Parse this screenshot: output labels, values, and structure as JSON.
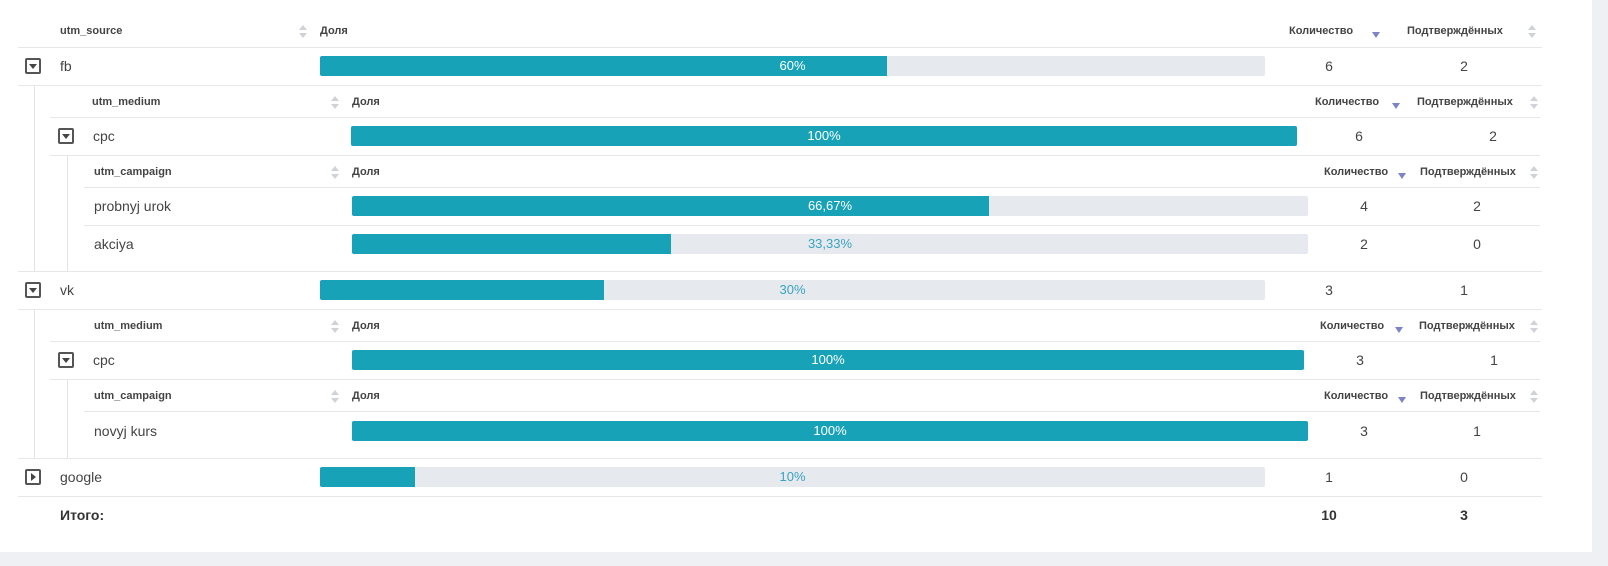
{
  "source_table": {
    "headers": {
      "name": "utm_source",
      "share": "Доля",
      "count": "Количество",
      "confirmed": "Подтверждённых"
    },
    "rows": [
      {
        "name": "fb",
        "share": 0.6,
        "share_label": "60%",
        "count": "6",
        "confirmed": "2"
      },
      {
        "name": "vk",
        "share": 0.3,
        "share_label": "30%",
        "count": "3",
        "confirmed": "1"
      },
      {
        "name": "google",
        "share": 0.1,
        "share_label": "10%",
        "count": "1",
        "confirmed": "0"
      }
    ],
    "total": {
      "label": "Итого:",
      "count": "10",
      "confirmed": "3"
    }
  },
  "fb_medium": {
    "headers": {
      "name": "utm_medium",
      "share": "Доля",
      "count": "Количество",
      "confirmed": "Подтверждённых"
    },
    "rows": [
      {
        "name": "cpc",
        "share": 1.0,
        "share_label": "100%",
        "count": "6",
        "confirmed": "2"
      }
    ]
  },
  "fb_campaign": {
    "headers": {
      "name": "utm_campaign",
      "share": "Доля",
      "count": "Количество",
      "confirmed": "Подтверждённых"
    },
    "rows": [
      {
        "name": "probnyj urok",
        "share": 0.6667,
        "share_label": "66,67%",
        "count": "4",
        "confirmed": "2"
      },
      {
        "name": "akciya",
        "share": 0.3333,
        "share_label": "33,33%",
        "count": "2",
        "confirmed": "0"
      }
    ]
  },
  "vk_medium": {
    "headers": {
      "name": "utm_medium",
      "share": "Доля",
      "count": "Количество",
      "confirmed": "Подтверждённых"
    },
    "rows": [
      {
        "name": "cpc",
        "share": 1.0,
        "share_label": "100%",
        "count": "3",
        "confirmed": "1"
      }
    ]
  },
  "vk_campaign": {
    "headers": {
      "name": "utm_campaign",
      "share": "Доля",
      "count": "Количество",
      "confirmed": "Подтверждённых"
    },
    "rows": [
      {
        "name": "novyj kurs",
        "share": 1.0,
        "share_label": "100%",
        "count": "3",
        "confirmed": "1"
      }
    ]
  },
  "colors": {
    "bar_fill": "#18a2b8",
    "bar_track": "#e6eaee",
    "sort_active": "#7b84c8"
  }
}
